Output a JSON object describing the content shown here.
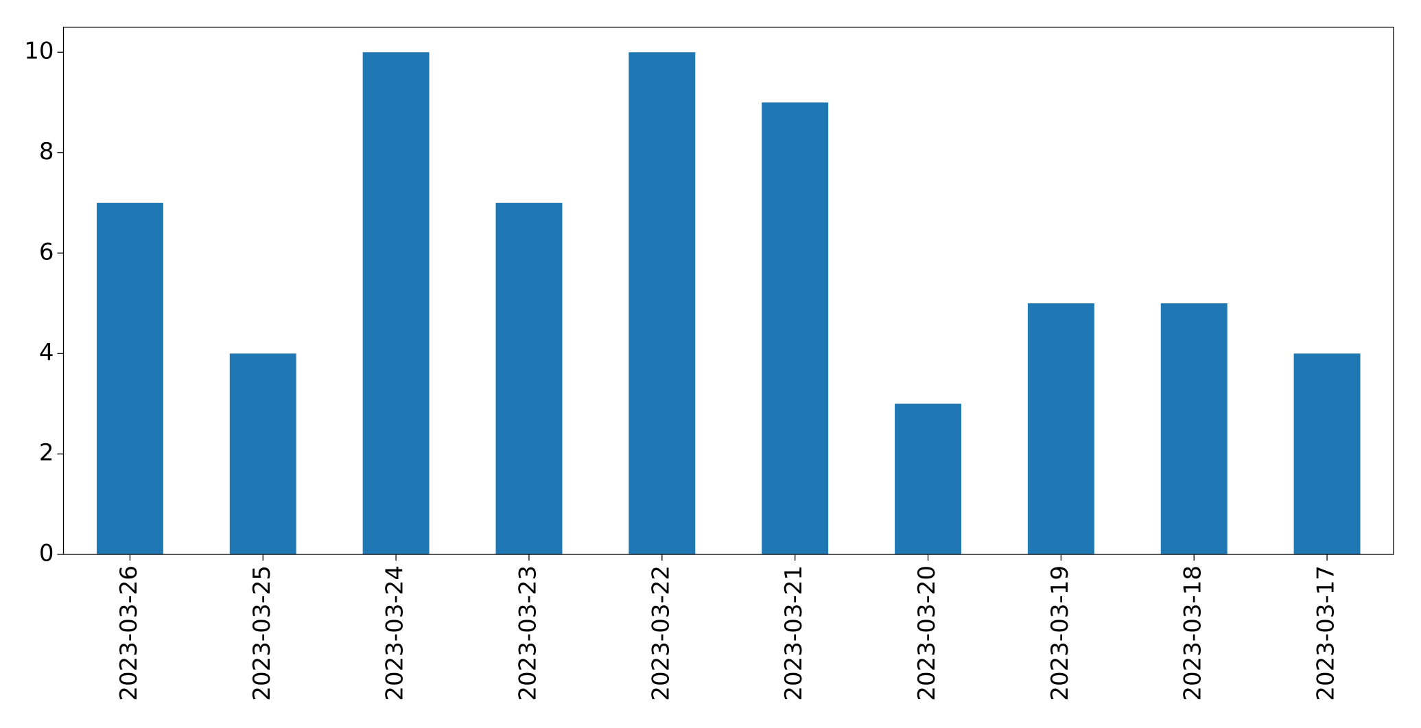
{
  "chart_data": {
    "type": "bar",
    "categories": [
      "2023-03-26",
      "2023-03-25",
      "2023-03-24",
      "2023-03-23",
      "2023-03-22",
      "2023-03-21",
      "2023-03-20",
      "2023-03-19",
      "2023-03-18",
      "2023-03-17"
    ],
    "values": [
      7,
      4,
      10,
      7,
      10,
      9,
      3,
      5,
      5,
      4
    ],
    "color": "#1f77b4",
    "ylim": [
      0,
      10.5
    ],
    "yticks": [
      0,
      2,
      4,
      6,
      8,
      10
    ],
    "grid": false
  }
}
